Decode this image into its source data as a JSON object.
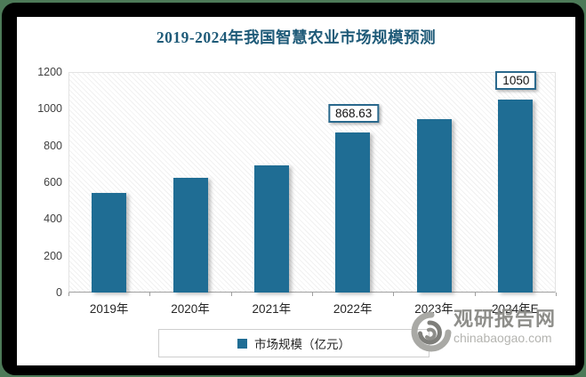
{
  "page": {
    "background_color": "#4d7a58",
    "frame_color": "#000000",
    "canvas_color": "#ffffff"
  },
  "chart_data": {
    "type": "bar",
    "title": "2019-2024年我国智慧农业市场规模预测",
    "title_color": "#1e5a78",
    "categories": [
      "2019年",
      "2020年",
      "2021年",
      "2022年",
      "2023年",
      "2024年E"
    ],
    "values": [
      540,
      625,
      690,
      868.63,
      945,
      1050
    ],
    "data_labels": [
      "",
      "",
      "",
      "868.63",
      "",
      "1050"
    ],
    "bar_color": "#1f6d94",
    "legend": [
      {
        "label": "市场规模（亿元）",
        "color": "#1f6d94"
      }
    ],
    "legend_position": "bottom-center",
    "xlabel": "",
    "ylabel": "",
    "ylim": [
      0,
      1200
    ],
    "yticks": [
      0,
      200,
      400,
      600,
      800,
      1000,
      1200
    ],
    "grid": false,
    "plot_background": "light-diagonal-hatch"
  },
  "watermark": {
    "logo": "swirl-g-logo",
    "site_name": "观研报告网",
    "site_url": "chinabaogao.com"
  }
}
